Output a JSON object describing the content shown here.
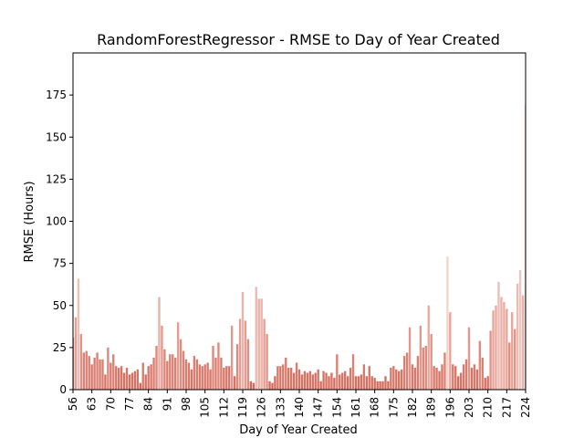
{
  "chart_data": {
    "type": "bar",
    "title": "RandomForestRegressor - RMSE to Day of Year Created",
    "xlabel": "Day of Year Created",
    "ylabel": "RMSE (Hours)",
    "xlim": [
      56,
      224
    ],
    "ylim": [
      0,
      200
    ],
    "xticks": [
      56,
      63,
      70,
      77,
      84,
      91,
      98,
      105,
      112,
      119,
      126,
      133,
      140,
      147,
      154,
      161,
      168,
      175,
      182,
      189,
      196,
      203,
      210,
      217,
      224
    ],
    "yticks": [
      0,
      25,
      50,
      75,
      100,
      125,
      150,
      175
    ],
    "color_scale": {
      "low": "#d4695a",
      "high": "#f5d3cc"
    },
    "x": [
      56,
      57,
      58,
      59,
      60,
      61,
      62,
      63,
      64,
      65,
      66,
      67,
      68,
      69,
      70,
      71,
      72,
      73,
      74,
      75,
      76,
      77,
      78,
      79,
      80,
      81,
      82,
      83,
      84,
      85,
      86,
      87,
      88,
      89,
      90,
      91,
      92,
      93,
      94,
      95,
      96,
      97,
      98,
      99,
      100,
      101,
      102,
      103,
      104,
      105,
      106,
      107,
      108,
      109,
      110,
      111,
      112,
      113,
      114,
      115,
      116,
      117,
      118,
      119,
      120,
      121,
      122,
      123,
      124,
      125,
      126,
      127,
      128,
      129,
      130,
      131,
      132,
      133,
      134,
      135,
      136,
      137,
      138,
      139,
      140,
      141,
      142,
      143,
      144,
      145,
      146,
      147,
      148,
      149,
      150,
      151,
      152,
      153,
      154,
      155,
      156,
      157,
      158,
      159,
      160,
      161,
      162,
      163,
      164,
      165,
      166,
      167,
      168,
      169,
      170,
      171,
      172,
      173,
      174,
      175,
      176,
      177,
      178,
      179,
      180,
      181,
      182,
      183,
      184,
      185,
      186,
      187,
      188,
      189,
      190,
      191,
      192,
      193,
      194,
      195,
      196,
      197,
      198,
      199,
      200,
      201,
      202,
      203,
      204,
      205,
      206,
      207,
      208,
      209,
      210,
      211,
      212,
      213,
      214,
      215,
      216,
      217,
      218,
      219,
      220,
      221,
      222,
      223,
      224
    ],
    "values": [
      31,
      43,
      66,
      33,
      22,
      23,
      20,
      15,
      19,
      22,
      18,
      18,
      9,
      25,
      16,
      21,
      14,
      13,
      14,
      10,
      13,
      9,
      10,
      11,
      12,
      4,
      16,
      9,
      14,
      15,
      19,
      26,
      55,
      38,
      24,
      17,
      21,
      21,
      19,
      40,
      30,
      23,
      18,
      16,
      12,
      20,
      18,
      15,
      14,
      15,
      16,
      12,
      26,
      19,
      28,
      19,
      13,
      14,
      14,
      38,
      8,
      27,
      42,
      58,
      41,
      30,
      5,
      4,
      61,
      54,
      54,
      42,
      33,
      5,
      4,
      8,
      14,
      14,
      15,
      19,
      13,
      13,
      10,
      16,
      12,
      9,
      11,
      10,
      11,
      9,
      10,
      12,
      5,
      11,
      10,
      8,
      10,
      7,
      21,
      9,
      10,
      11,
      8,
      13,
      21,
      8,
      8,
      9,
      15,
      8,
      14,
      8,
      7,
      5,
      5,
      5,
      8,
      5,
      13,
      14,
      12,
      11,
      12,
      20,
      22,
      37,
      15,
      13,
      20,
      38,
      25,
      26,
      50,
      33,
      14,
      13,
      11,
      15,
      22,
      79,
      46,
      15,
      14,
      8,
      10,
      15,
      18,
      37,
      13,
      15,
      12,
      29,
      19,
      7,
      8,
      35,
      47,
      50,
      64,
      55,
      52,
      48,
      28,
      46,
      36,
      63,
      71,
      56,
      169
    ]
  }
}
